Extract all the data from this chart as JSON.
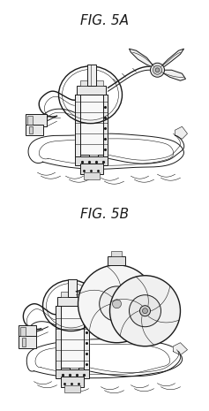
{
  "title_a": "FIG. 5A",
  "title_b": "FIG. 5B",
  "bg_color": "#ffffff",
  "line_color": "#1a1a1a",
  "title_fontsize": 11,
  "title_font": "DejaVu Sans",
  "fig_width": 2.37,
  "fig_height": 4.65,
  "dpi": 100
}
